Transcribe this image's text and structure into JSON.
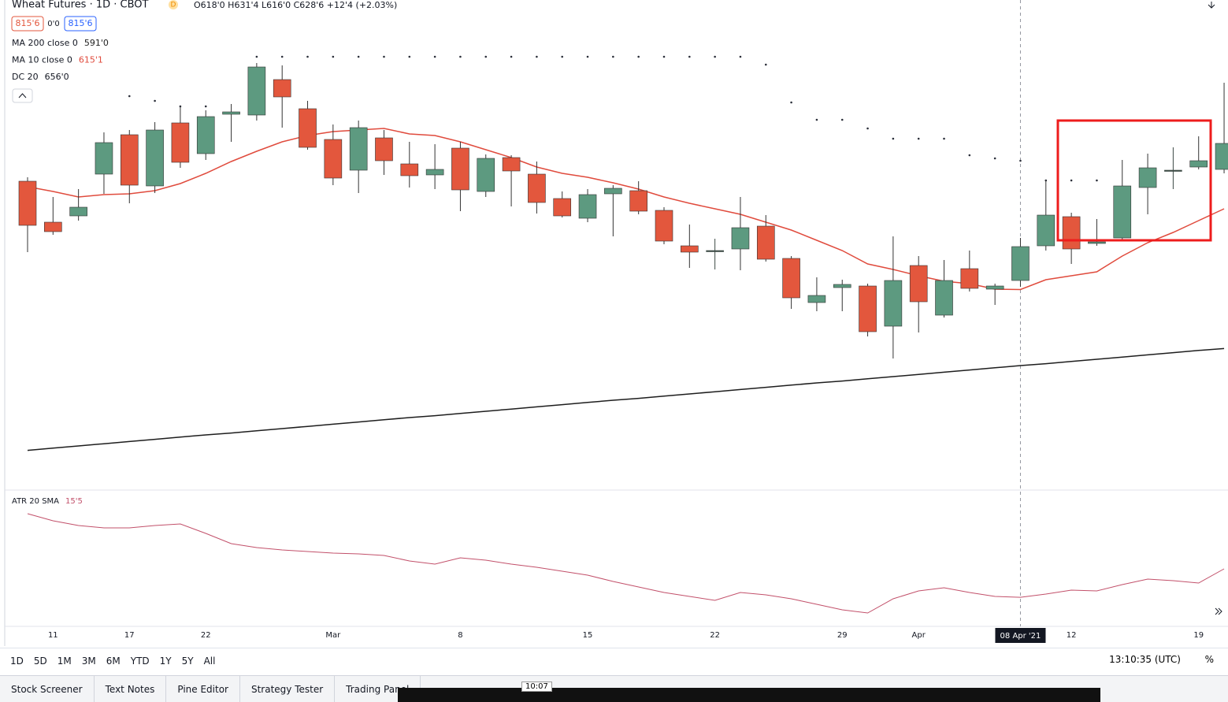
{
  "header": {
    "symbol": "Wheat Futures · 1D · CBOT",
    "badge": "D",
    "ohlc": "O618'0 H631'4 L616'0 C628'6 +12'4 (+2.03%)",
    "sell": "815'6",
    "spread": "0'0",
    "buy": "815'6"
  },
  "chart_data": [
    {
      "type": "candlestick",
      "categories": [
        null,
        "11",
        null,
        null,
        "17",
        null,
        null,
        "22",
        null,
        null,
        null,
        null,
        "Mar",
        null,
        null,
        null,
        null,
        "8",
        null,
        null,
        null,
        null,
        "15",
        null,
        null,
        null,
        null,
        "22",
        null,
        null,
        null,
        null,
        "29",
        null,
        null,
        "Apr",
        null,
        null,
        null,
        null,
        null,
        "12",
        null,
        null,
        null,
        null,
        "19",
        null
      ],
      "open": [
        649.5,
        636.5,
        638.5,
        651.75,
        664.25,
        648,
        668,
        658.25,
        670.75,
        670.5,
        681.75,
        672.5,
        662.75,
        653,
        663.25,
        655,
        651.5,
        660,
        646.25,
        657,
        651.75,
        644,
        637.75,
        645.5,
        646.5,
        640.25,
        629,
        627.5,
        628,
        635.25,
        625,
        611,
        615.75,
        616.25,
        603.5,
        622.75,
        607,
        621.75,
        615.25,
        618,
        629,
        638.25,
        629.75,
        631.5,
        647.5,
        653,
        654,
        653.25
      ],
      "high": [
        650.75,
        644.5,
        647,
        665,
        665.75,
        668.25,
        673.25,
        672,
        674,
        687,
        686.25,
        675,
        667.5,
        668.75,
        665.75,
        662,
        661.25,
        662,
        658,
        657.75,
        655.75,
        646.25,
        647,
        648.25,
        649.5,
        641.25,
        635.75,
        631.25,
        644.5,
        638.75,
        625.75,
        619,
        618.25,
        617,
        632,
        625.75,
        624.5,
        627.5,
        617,
        631.5,
        650,
        639.5,
        637.5,
        656.25,
        658.25,
        660.25,
        663.75,
        680.75
      ],
      "low": [
        627,
        632.5,
        637,
        645.5,
        642.5,
        645.75,
        653.75,
        656.25,
        662,
        668.75,
        666.5,
        659.5,
        648.25,
        645.75,
        651.5,
        647.5,
        647,
        640,
        644.5,
        641.5,
        639.25,
        638,
        636.5,
        632,
        639,
        629.5,
        622,
        621.5,
        621.25,
        624,
        609,
        608.25,
        608.25,
        600.25,
        593.25,
        601.5,
        606.25,
        614.5,
        610.25,
        616,
        627.5,
        623.25,
        629,
        630.75,
        639,
        647,
        653.25,
        652
      ],
      "close": [
        635.5,
        633.5,
        641.25,
        661.75,
        648.25,
        665.75,
        655.5,
        670,
        671.5,
        685.75,
        676.25,
        660.25,
        650.5,
        666.5,
        656,
        651.25,
        653.25,
        646.75,
        656.75,
        652.75,
        642.75,
        638.5,
        645.25,
        647.25,
        640,
        630.5,
        627,
        627.5,
        634.75,
        624.75,
        612.5,
        613.25,
        616.75,
        601.75,
        618,
        611.25,
        618,
        615.5,
        616.25,
        628.75,
        638.75,
        628,
        630.25,
        648,
        653.75,
        653,
        656,
        661.5
      ],
      "up_color": "#5d9a80",
      "down_color": "#e3573d",
      "doji_color": "#3c4a45",
      "ylim": [
        552,
        707
      ],
      "overlays": [
        {
          "name": "MA 200 close 0",
          "value_label": "591'0",
          "style": "line",
          "color": "#1e1e1e",
          "values": [
            564.1,
            564.8,
            565.5,
            566.2,
            566.9,
            567.6,
            568.3,
            569.0,
            569.6,
            570.3,
            571.0,
            571.7,
            572.4,
            573.1,
            573.8,
            574.5,
            575.1,
            575.8,
            576.5,
            577.2,
            577.9,
            578.6,
            579.3,
            580.0,
            580.6,
            581.3,
            582.0,
            582.7,
            583.4,
            584.1,
            584.8,
            585.5,
            586.1,
            586.8,
            587.5,
            588.2,
            588.9,
            589.6,
            590.3,
            591.0,
            591.6,
            592.3,
            593.0,
            593.7,
            594.4,
            595.1,
            595.8,
            596.4
          ]
        },
        {
          "name": "MA 10 close 0",
          "value_label": "615'1",
          "style": "line",
          "color": "#e04b3d",
          "values": [
            647.75,
            646.25,
            644.5,
            645.25,
            645.5,
            646.5,
            648.75,
            652,
            655.75,
            659,
            662,
            664,
            665.25,
            665.75,
            666.25,
            664.5,
            664,
            662,
            659.5,
            657,
            654,
            652,
            650.75,
            649,
            647,
            644.5,
            642.5,
            640.75,
            639,
            636.5,
            634,
            630.75,
            627.5,
            623.25,
            621.5,
            619.5,
            617.75,
            617,
            615.25,
            615.125,
            618.25,
            619.5,
            620.75,
            625.75,
            630,
            633.25,
            637,
            640.75
          ]
        },
        {
          "name": "DC 20",
          "value_label": "656'0",
          "style": "dots",
          "color": "#2a2e39",
          "values": [
            null,
            null,
            null,
            null,
            676.5,
            675,
            673.25,
            673.25,
            null,
            689,
            689,
            689,
            689,
            689,
            689,
            689,
            689,
            689,
            689,
            689,
            689,
            689,
            689,
            689,
            689,
            689,
            689,
            689,
            689,
            686.5,
            674.5,
            669,
            669,
            666.25,
            663,
            663,
            663,
            657.75,
            656.75,
            656,
            649.75,
            649.75,
            649.75,
            null,
            null,
            null,
            null,
            null
          ]
        }
      ]
    },
    {
      "type": "line",
      "name": "ATR 20 SMA",
      "value_label": "15'5",
      "color": "#c2506a",
      "values": [
        21.99,
        21.45,
        21.09,
        20.91,
        20.91,
        21.09,
        21.21,
        20.49,
        19.71,
        19.41,
        19.23,
        19.11,
        18.99,
        18.93,
        18.81,
        18.39,
        18.15,
        18.63,
        18.45,
        18.15,
        17.91,
        17.61,
        17.31,
        16.83,
        16.41,
        15.99,
        15.69,
        15.39,
        15.99,
        15.81,
        15.51,
        15.09,
        14.67,
        14.43,
        15.51,
        16.11,
        16.35,
        15.99,
        15.69,
        15.625,
        15.87,
        16.17,
        16.11,
        16.59,
        17.01,
        16.89,
        16.71,
        17.79
      ],
      "ylim": [
        13.41,
        23.61
      ]
    }
  ],
  "ui": {
    "crosshair_date": "08 Apr '21",
    "timeframes": [
      "1D",
      "5D",
      "1M",
      "3M",
      "6M",
      "YTD",
      "1Y",
      "5Y",
      "All"
    ],
    "clock": "13:10:35 (UTC)",
    "percent": "%",
    "tabs": [
      "Stock Screener",
      "Text Notes",
      "Pine Editor",
      "Strategy Tester",
      "Trading Panel"
    ],
    "video_time": "10:07"
  }
}
